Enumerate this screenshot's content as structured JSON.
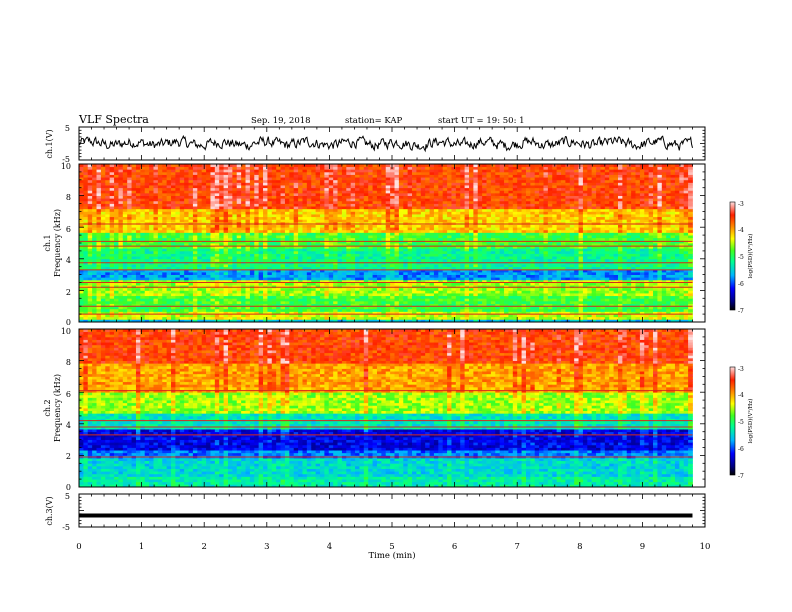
{
  "header": {
    "title": "VLF Spectra",
    "date": "Sep. 19, 2018",
    "station": "station= KAP",
    "start_ut": "start  UT =   19: 50: 1"
  },
  "chart_data": [
    {
      "type": "line",
      "panel": "ch1-waveform",
      "ylabel": "ch.1(V)",
      "ylim": [
        -5,
        5
      ],
      "yticks": [
        "5",
        "-5"
      ],
      "x_range_min": [
        0,
        9.8
      ],
      "values_note": "noisy waveform around 0 V, amplitude ~±1.5 V"
    },
    {
      "type": "heatmap",
      "panel": "ch1-spectrogram",
      "ylabel": "ch.1\nFrequency  (kHz)",
      "ylim": [
        0,
        10
      ],
      "yticks": [
        "0",
        "2",
        "4",
        "6",
        "8",
        "10"
      ],
      "x_range_min": [
        0,
        9.8
      ],
      "colorbar": {
        "label": "log(PSD)(V²/Hz)",
        "range": [
          -7,
          -3
        ],
        "ticks": [
          "-3",
          "-4",
          "-5",
          "-6",
          "-7"
        ]
      },
      "bands": [
        {
          "f": [
            0,
            0.2
          ],
          "level": -5.6
        },
        {
          "f": [
            0.2,
            0.6
          ],
          "level": -4.5
        },
        {
          "f": [
            0.6,
            1.6
          ],
          "level": -4.9
        },
        {
          "f": [
            1.6,
            2.6
          ],
          "level": -4.6
        },
        {
          "f": [
            2.6,
            3.4
          ],
          "level": -5.8
        },
        {
          "f": [
            3.4,
            4.6
          ],
          "level": -5.2
        },
        {
          "f": [
            4.6,
            5.6
          ],
          "level": -4.9
        },
        {
          "f": [
            5.6,
            7.2
          ],
          "level": -4.2
        },
        {
          "f": [
            7.2,
            10
          ],
          "level": -3.6
        }
      ],
      "lines_khz": [
        0.5,
        1.0,
        2.2,
        2.5,
        3.3,
        3.75,
        4.8,
        5.1,
        6.2
      ]
    },
    {
      "type": "heatmap",
      "panel": "ch2-spectrogram",
      "ylabel": "ch.2\nFrequency  (kHz)",
      "ylim": [
        0,
        10
      ],
      "yticks": [
        "0",
        "2",
        "4",
        "6",
        "8",
        "10"
      ],
      "x_range_min": [
        0,
        9.8
      ],
      "colorbar": {
        "label": "log(PSD)(V²/Hz)",
        "range": [
          -7,
          -3
        ],
        "ticks": [
          "-3",
          "-4",
          "-5",
          "-6",
          "-7"
        ]
      },
      "bands": [
        {
          "f": [
            0,
            0.6
          ],
          "level": -5.3
        },
        {
          "f": [
            0.6,
            1.8
          ],
          "level": -5.5
        },
        {
          "f": [
            1.8,
            2.4
          ],
          "level": -5.9
        },
        {
          "f": [
            2.4,
            3.6
          ],
          "level": -6.3
        },
        {
          "f": [
            3.6,
            4.6
          ],
          "level": -5.4
        },
        {
          "f": [
            4.6,
            6.0
          ],
          "level": -4.6
        },
        {
          "f": [
            6.0,
            7.8
          ],
          "level": -4.0
        },
        {
          "f": [
            7.8,
            10
          ],
          "level": -3.6
        }
      ],
      "lines_khz": [
        1.9,
        3.3,
        3.8,
        4.2,
        6.1
      ]
    },
    {
      "type": "line",
      "panel": "ch3-waveform",
      "ylabel": "ch.3(V)",
      "ylim": [
        -5,
        5
      ],
      "yticks": [
        "5",
        "-5"
      ],
      "x_range_min": [
        0,
        9.8
      ],
      "values_note": "flat line near -1.5 V"
    }
  ],
  "xaxis": {
    "label": "Time  (min)",
    "ticks": [
      "0",
      "1",
      "2",
      "3",
      "4",
      "5",
      "6",
      "7",
      "8",
      "9",
      "10"
    ],
    "range": [
      0,
      10
    ]
  },
  "colors": {
    "ink": "#000000",
    "ramp": [
      "#000080",
      "#0000ff",
      "#00a0ff",
      "#00ffc0",
      "#30ff30",
      "#c8f000",
      "#ffff00",
      "#ffb000",
      "#ff3000",
      "#ff6060",
      "#ffc8c8"
    ]
  }
}
